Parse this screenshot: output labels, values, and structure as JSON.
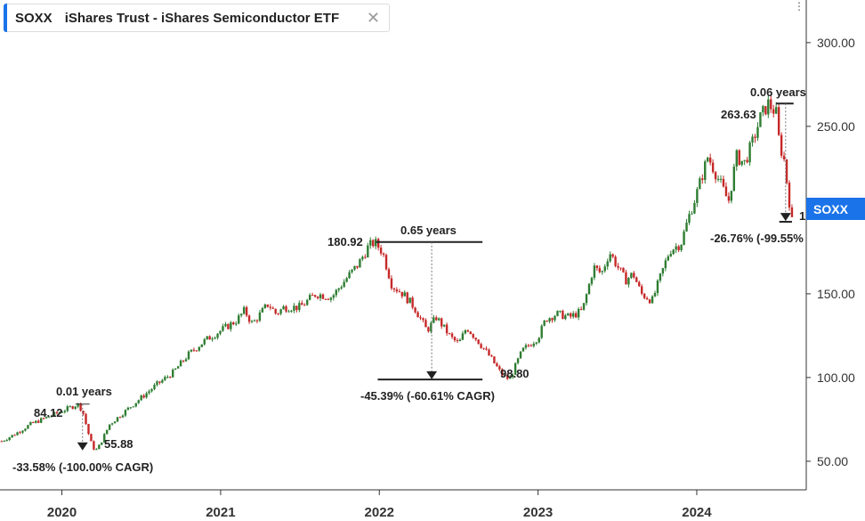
{
  "header": {
    "symbol": "SOXX",
    "name": "iShares Trust - iShares Semiconductor ETF",
    "close_glyph": "✕"
  },
  "colors": {
    "up": "#2e7d32",
    "down": "#c62828",
    "accent": "#1a73e8",
    "grid": "#000000"
  },
  "price_tag": {
    "label": "SOXX",
    "partial_value": "1"
  },
  "chart_data": {
    "type": "line",
    "style": "candlestick",
    "title": "",
    "xlabel": "",
    "ylabel": "",
    "x_ticks": [
      "2020",
      "2021",
      "2022",
      "2023",
      "2024"
    ],
    "y_ticks": [
      "50.00",
      "100.00",
      "150.00",
      "200.00",
      "250.00",
      "300.00"
    ],
    "ylim": [
      34,
      318
    ],
    "xlim": [
      2019.61,
      2024.69
    ],
    "grid": false,
    "series": [
      {
        "x": [
          2019.62,
          2019.7,
          2019.8,
          2019.9,
          2020.0,
          2020.05,
          2020.1,
          2020.13,
          2020.18,
          2020.21,
          2020.24,
          2020.3,
          2020.4,
          2020.5,
          2020.6,
          2020.7,
          2020.8,
          2020.9,
          2021.0,
          2021.1,
          2021.15,
          2021.2,
          2021.3,
          2021.35,
          2021.4,
          2021.5,
          2021.55,
          2021.6,
          2021.7,
          2021.8,
          2021.87,
          2021.93,
          2021.97,
          2022.02,
          2022.08,
          2022.15,
          2022.22,
          2022.3,
          2022.36,
          2022.45,
          2022.5,
          2022.55,
          2022.62,
          2022.7,
          2022.77,
          2022.82,
          2022.9,
          2023.0,
          2023.05,
          2023.12,
          2023.2,
          2023.28,
          2023.35,
          2023.4,
          2023.45,
          2023.55,
          2023.6,
          2023.65,
          2023.72,
          2023.8,
          2023.83,
          2023.9,
          2023.95,
          2024.0,
          2024.07,
          2024.12,
          2024.2,
          2024.25,
          2024.3,
          2024.35,
          2024.4,
          2024.45,
          2024.5,
          2024.52,
          2024.55,
          2024.57,
          2024.6
        ],
        "values": [
          62,
          66,
          72,
          76,
          80,
          82,
          84.12,
          80,
          62,
          55.88,
          60,
          72,
          80,
          88,
          96,
          103,
          114,
          122,
          128,
          134,
          140,
          132,
          144,
          138,
          142,
          142,
          146,
          150,
          148,
          160,
          168,
          178,
          180.92,
          175,
          155,
          150,
          142,
          128,
          136,
          124,
          120,
          130,
          122,
          112,
          102,
          98.8,
          116,
          124,
          135,
          138,
          136,
          140,
          166,
          162,
          175,
          158,
          162,
          150,
          146,
          168,
          176,
          180,
          196,
          210,
          232,
          222,
          205,
          232,
          228,
          240,
          255,
          263.63,
          258,
          240,
          230,
          215,
          193
        ]
      }
    ],
    "annotations": [
      {
        "span": "0.01 years",
        "high": "84.12",
        "low": "55.88",
        "change": "-33.58% (-100.00% CAGR)"
      },
      {
        "span": "0.65 years",
        "high": "180.92",
        "low": "98.80",
        "change": "-45.39% (-60.61% CAGR)"
      },
      {
        "span": "0.06 years",
        "high": "263.63",
        "change": "-26.76% (-99.55%"
      }
    ]
  }
}
